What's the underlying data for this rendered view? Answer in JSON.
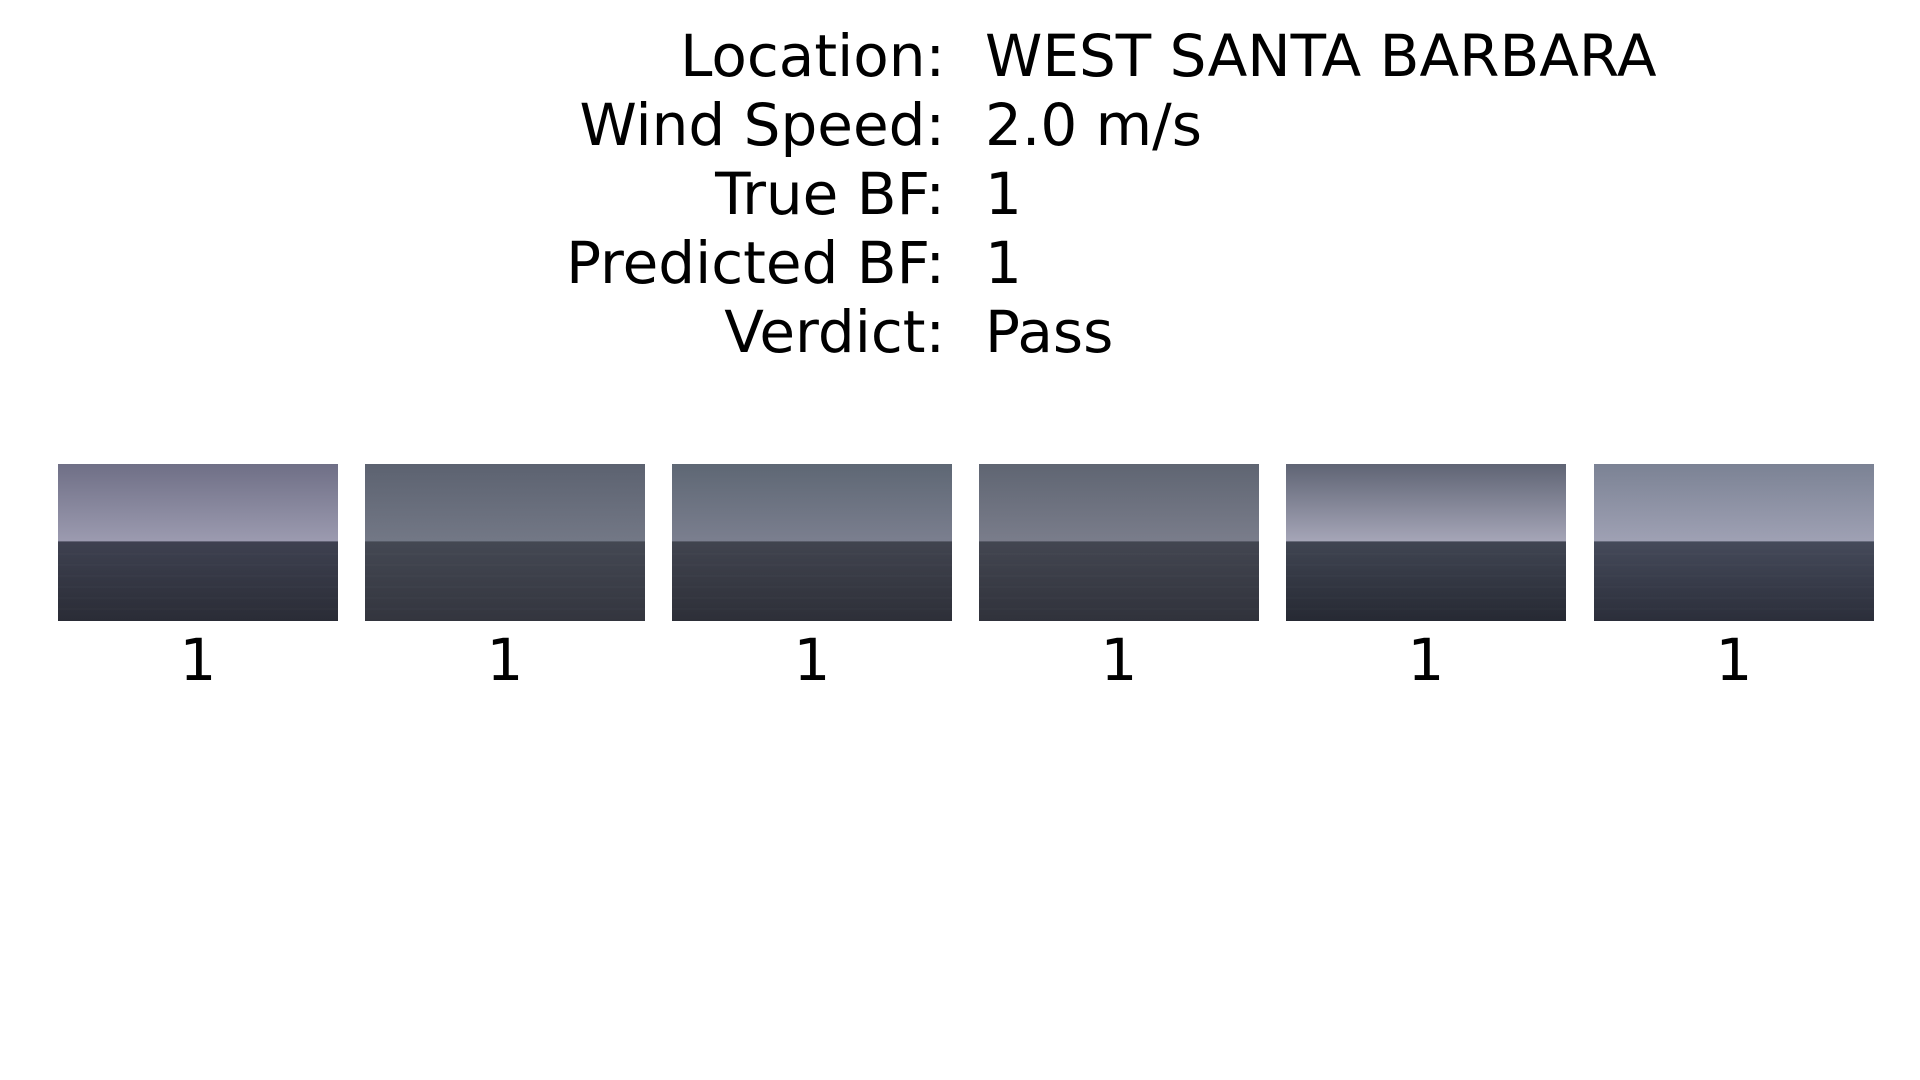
{
  "info": {
    "rows": [
      {
        "label": "Location:",
        "value": "WEST SANTA BARBARA"
      },
      {
        "label": "Wind Speed:",
        "value": "2.0 m/s"
      },
      {
        "label": "True BF:",
        "value": "1"
      },
      {
        "label": "Predicted BF:",
        "value": "1"
      },
      {
        "label": "Verdict:",
        "value": "Pass"
      }
    ]
  },
  "frames": [
    {
      "label": "1",
      "sky_top": "#6f6f86",
      "sky_bottom": "#9c9bb0",
      "sea_top": "#3e4150",
      "sea_bottom": "#2a2c36"
    },
    {
      "label": "1",
      "sky_top": "#5c6270",
      "sky_bottom": "#737886",
      "sea_top": "#444853",
      "sea_bottom": "#33353e"
    },
    {
      "label": "1",
      "sky_top": "#5e6774",
      "sky_bottom": "#7b7f8f",
      "sea_top": "#41444f",
      "sea_bottom": "#2d2f38"
    },
    {
      "label": "1",
      "sky_top": "#5f6572",
      "sky_bottom": "#7a7d8b",
      "sea_top": "#434651",
      "sea_bottom": "#30323b"
    },
    {
      "label": "1",
      "sky_top": "#5f6474",
      "sky_bottom": "#a6a6b8",
      "sea_top": "#404552",
      "sea_bottom": "#262933"
    },
    {
      "label": "1",
      "sky_top": "#7b8294",
      "sky_bottom": "#9fa1b4",
      "sea_top": "#454a5a",
      "sea_bottom": "#2b2e3a"
    }
  ]
}
